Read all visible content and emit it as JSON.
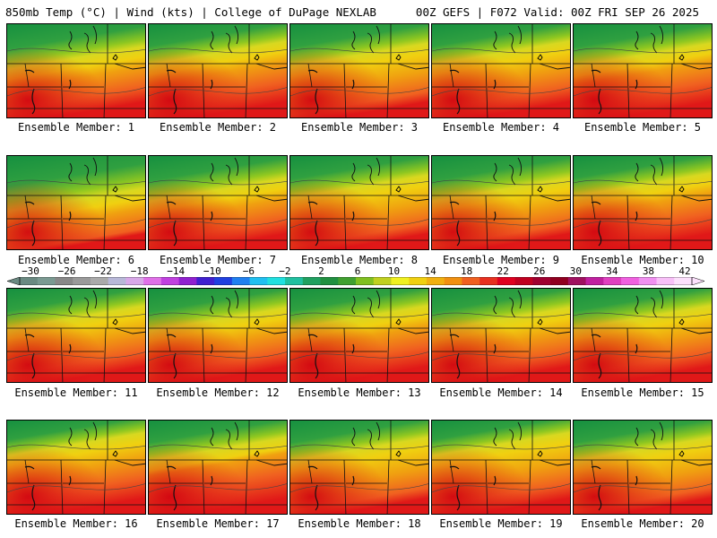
{
  "header": {
    "left": "850mb Temp (°C) | Wind (kts) | College of DuPage NEXLAB",
    "right": "00Z GEFS | F072 Valid: 00Z FRI SEP 26 2025"
  },
  "members": [
    {
      "label": "Ensemble Member: 1",
      "green_extent": 0.45,
      "red_extent": 0.5
    },
    {
      "label": "Ensemble Member: 2",
      "green_extent": 0.4,
      "red_extent": 0.55
    },
    {
      "label": "Ensemble Member: 3",
      "green_extent": 0.42,
      "red_extent": 0.45
    },
    {
      "label": "Ensemble Member: 4",
      "green_extent": 0.4,
      "red_extent": 0.5
    },
    {
      "label": "Ensemble Member: 5",
      "green_extent": 0.42,
      "red_extent": 0.55
    },
    {
      "label": "Ensemble Member: 6",
      "green_extent": 0.55,
      "red_extent": 0.4
    },
    {
      "label": "Ensemble Member: 7",
      "green_extent": 0.45,
      "red_extent": 0.5
    },
    {
      "label": "Ensemble Member: 8",
      "green_extent": 0.42,
      "red_extent": 0.45
    },
    {
      "label": "Ensemble Member: 9",
      "green_extent": 0.45,
      "red_extent": 0.45
    },
    {
      "label": "Ensemble Member: 10",
      "green_extent": 0.4,
      "red_extent": 0.55
    },
    {
      "label": "Ensemble Member: 11",
      "green_extent": 0.4,
      "red_extent": 0.5
    },
    {
      "label": "Ensemble Member: 12",
      "green_extent": 0.42,
      "red_extent": 0.5
    },
    {
      "label": "Ensemble Member: 13",
      "green_extent": 0.4,
      "red_extent": 0.55
    },
    {
      "label": "Ensemble Member: 14",
      "green_extent": 0.42,
      "red_extent": 0.5
    },
    {
      "label": "Ensemble Member: 15",
      "green_extent": 0.4,
      "red_extent": 0.5
    },
    {
      "label": "Ensemble Member: 16",
      "green_extent": 0.35,
      "red_extent": 0.55
    },
    {
      "label": "Ensemble Member: 17",
      "green_extent": 0.4,
      "red_extent": 0.6
    },
    {
      "label": "Ensemble Member: 18",
      "green_extent": 0.4,
      "red_extent": 0.45
    },
    {
      "label": "Ensemble Member: 19",
      "green_extent": 0.35,
      "red_extent": 0.5
    },
    {
      "label": "Ensemble Member: 20",
      "green_extent": 0.4,
      "red_extent": 0.45
    }
  ],
  "colorbar": {
    "labels": [
      "−30",
      "−26",
      "−22",
      "−18",
      "−14",
      "−10",
      "−6",
      "−2",
      "2",
      "6",
      "10",
      "14",
      "18",
      "22",
      "26",
      "30",
      "34",
      "38",
      "42"
    ],
    "colors": [
      "#6a8a82",
      "#7a9a92",
      "#888888",
      "#9a9a9a",
      "#aaaaaa",
      "#b8b8d8",
      "#d8a8e8",
      "#e070e8",
      "#c040e0",
      "#9020d0",
      "#4020d0",
      "#2040e0",
      "#2080f0",
      "#20c0f0",
      "#20e0e0",
      "#20c0a0",
      "#20a060",
      "#209040",
      "#40a030",
      "#80c020",
      "#c0d020",
      "#f0f020",
      "#f0d010",
      "#f0b010",
      "#f09010",
      "#f06020",
      "#e83020",
      "#e00020",
      "#c00020",
      "#a00030",
      "#900020",
      "#a01060",
      "#c020a0",
      "#e040c0",
      "#f060e0",
      "#f090f0",
      "#f8c0f8",
      "#fce0fc"
    ]
  },
  "colors": {
    "green": "#1e8c3c",
    "red": "#e01818"
  }
}
